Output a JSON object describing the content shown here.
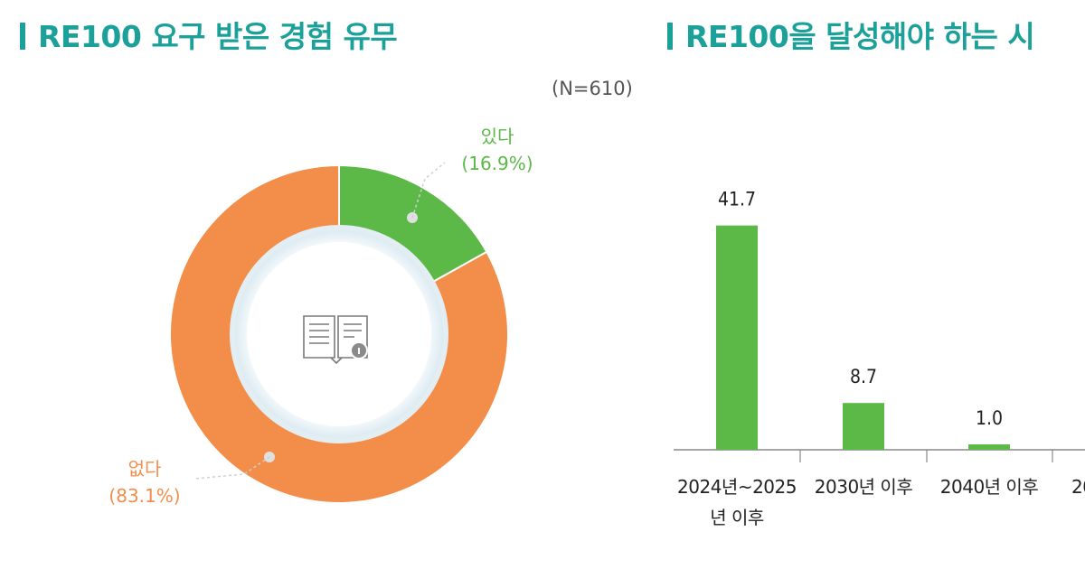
{
  "colors": {
    "accent": "#1ba19a",
    "yes": "#5cb947",
    "no": "#f28d4a",
    "bar": "#5cb947"
  },
  "left": {
    "title": "RE100 요구 받은 경험 유무",
    "sample_note": "(N=610)"
  },
  "right": {
    "title": "RE100을 달성해야 하는 시"
  },
  "chart_data": [
    {
      "type": "pie",
      "title": "RE100 요구 받은 경험 유무",
      "subtitle": "(N=610)",
      "donut": true,
      "center_icon": "book-info-icon",
      "slices": [
        {
          "label": "있다",
          "value": 16.9,
          "display": "(16.9%)",
          "color": "#5cb947"
        },
        {
          "label": "없다",
          "value": 83.1,
          "display": "(83.1%)",
          "color": "#f28d4a"
        }
      ]
    },
    {
      "type": "bar",
      "title": "RE100을 달성해야 하는 시",
      "categories": [
        "2024년~2025년 이후",
        "2030년 이후",
        "2040년 이후",
        "20"
      ],
      "values": [
        41.7,
        8.7,
        1.0,
        null
      ],
      "value_labels": [
        "41.7",
        "8.7",
        "1.0",
        ""
      ],
      "ylim": [
        0,
        45
      ]
    }
  ]
}
